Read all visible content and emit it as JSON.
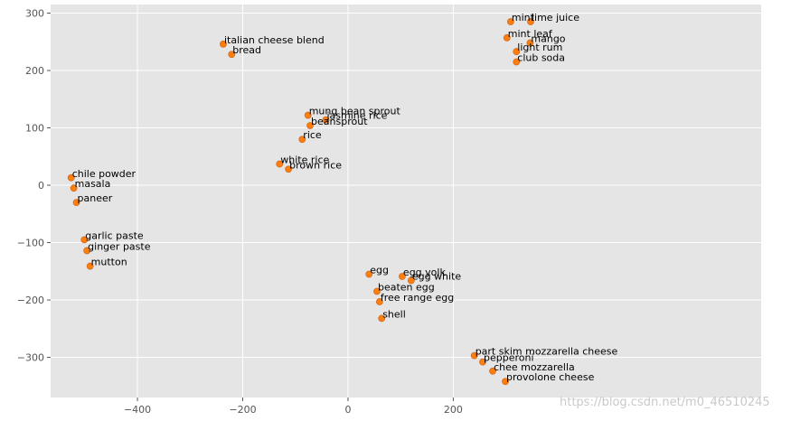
{
  "chart_data": {
    "type": "scatter",
    "title": "",
    "xlabel": "",
    "ylabel": "",
    "xlim": [
      -565,
      785
    ],
    "ylim": [
      -370,
      315
    ],
    "grid": true,
    "x_ticks": [
      -400,
      -200,
      0,
      200
    ],
    "y_ticks": [
      300,
      200,
      100,
      0,
      -100,
      -200,
      -300
    ],
    "x_tick_labels": [
      "−400",
      "−200",
      "0",
      "200"
    ],
    "y_tick_labels": [
      "300",
      "200",
      "100",
      "0",
      "−100",
      "−200",
      "−300"
    ],
    "marker_color": "#ff7f0e",
    "marker_edge": "#d2691e",
    "background_color": "#e5e5e5",
    "points": [
      {
        "label": "italian cheese blend",
        "x": -237,
        "y": 246
      },
      {
        "label": "bread",
        "x": -221,
        "y": 228
      },
      {
        "label": "mint",
        "x": 309,
        "y": 285
      },
      {
        "label": "lime juice",
        "x": 347,
        "y": 285
      },
      {
        "label": "mint leaf",
        "x": 302,
        "y": 257
      },
      {
        "label": "mango",
        "x": 346,
        "y": 248
      },
      {
        "label": "light rum",
        "x": 320,
        "y": 233
      },
      {
        "label": "club soda",
        "x": 320,
        "y": 215
      },
      {
        "label": "mung bean sprout",
        "x": -76,
        "y": 122
      },
      {
        "label": "jasmine rice",
        "x": -42,
        "y": 114
      },
      {
        "label": "beansprout",
        "x": -72,
        "y": 104
      },
      {
        "label": "rice",
        "x": -87,
        "y": 80
      },
      {
        "label": "white rice",
        "x": -130,
        "y": 37
      },
      {
        "label": "brown rice",
        "x": -113,
        "y": 28
      },
      {
        "label": "chile powder",
        "x": -526,
        "y": 13
      },
      {
        "label": "masala",
        "x": -521,
        "y": -5
      },
      {
        "label": "paneer",
        "x": -516,
        "y": -30
      },
      {
        "label": "garlic paste",
        "x": -501,
        "y": -95
      },
      {
        "label": "ginger paste",
        "x": -496,
        "y": -114
      },
      {
        "label": "mutton",
        "x": -490,
        "y": -141
      },
      {
        "label": "egg",
        "x": 40,
        "y": -155
      },
      {
        "label": "egg yolk",
        "x": 103,
        "y": -159
      },
      {
        "label": "egg white",
        "x": 120,
        "y": -166
      },
      {
        "label": "beaten egg",
        "x": 55,
        "y": -185
      },
      {
        "label": "free range egg",
        "x": 60,
        "y": -203
      },
      {
        "label": "shell",
        "x": 64,
        "y": -232
      },
      {
        "label": "part skim mozzarella cheese",
        "x": 240,
        "y": -297
      },
      {
        "label": "pepperoni",
        "x": 256,
        "y": -308
      },
      {
        "label": "chee mozzarella",
        "x": 275,
        "y": -324
      },
      {
        "label": "provolone cheese",
        "x": 299,
        "y": -342
      }
    ]
  },
  "watermark": "https://blog.csdn.net/m0_46510245"
}
